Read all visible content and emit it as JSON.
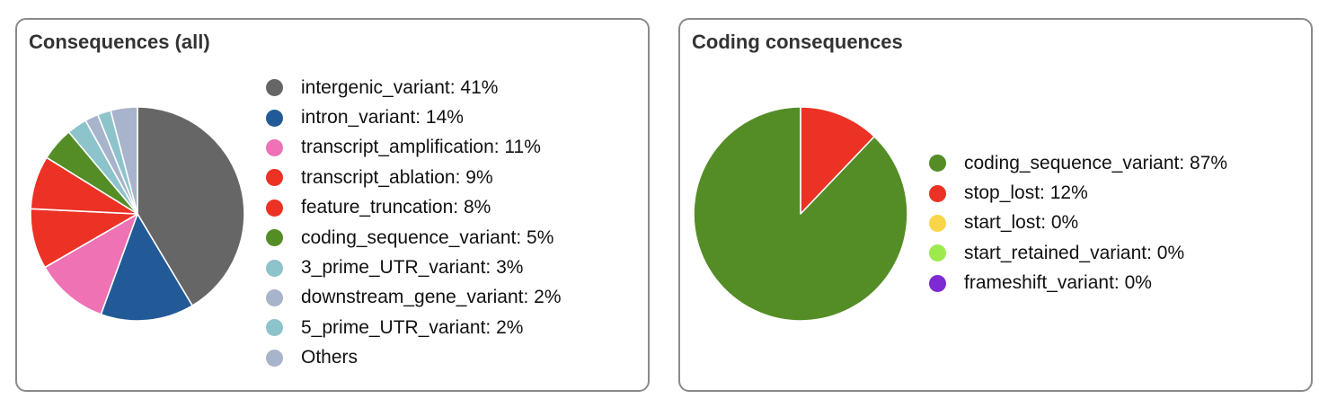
{
  "chart_data": [
    {
      "type": "pie",
      "title": "Consequences (all)",
      "slices": [
        {
          "label": "intergenic_variant",
          "value": 41,
          "color": "#666666"
        },
        {
          "label": "intron_variant",
          "value": 14,
          "color": "#225a97"
        },
        {
          "label": "transcript_amplification",
          "value": 11,
          "color": "#ee72b4"
        },
        {
          "label": "transcript_ablation",
          "value": 9,
          "color": "#ec3125"
        },
        {
          "label": "feature_truncation",
          "value": 8,
          "color": "#ec3125"
        },
        {
          "label": "coding_sequence_variant",
          "value": 5,
          "color": "#548d26"
        },
        {
          "label": "3_prime_UTR_variant",
          "value": 3,
          "color": "#8dc3cb"
        },
        {
          "label": "downstream_gene_variant",
          "value": 2,
          "color": "#a8b4cb"
        },
        {
          "label": "5_prime_UTR_variant",
          "value": 2,
          "color": "#8dc3cb"
        },
        {
          "label": "Others",
          "value": 4,
          "color": "#a8b4cb"
        }
      ],
      "legend": [
        {
          "text": "intergenic_variant: 41%",
          "color": "#666666"
        },
        {
          "text": "intron_variant: 14%",
          "color": "#225a97"
        },
        {
          "text": "transcript_amplification: 11%",
          "color": "#ee72b4"
        },
        {
          "text": "transcript_ablation: 9%",
          "color": "#ec3125"
        },
        {
          "text": "feature_truncation: 8%",
          "color": "#ec3125"
        },
        {
          "text": "coding_sequence_variant: 5%",
          "color": "#548d26"
        },
        {
          "text": "3_prime_UTR_variant: 3%",
          "color": "#8dc3cb"
        },
        {
          "text": "downstream_gene_variant: 2%",
          "color": "#a8b4cb"
        },
        {
          "text": "5_prime_UTR_variant: 2%",
          "color": "#8dc3cb"
        },
        {
          "text": "Others",
          "color": "#a8b4cb"
        }
      ],
      "legend_placement": "right"
    },
    {
      "type": "pie",
      "title": "Coding consequences",
      "slices": [
        {
          "label": "stop_lost",
          "value": 12,
          "color": "#ec3125"
        },
        {
          "label": "coding_sequence_variant",
          "value": 87,
          "color": "#548d26"
        }
      ],
      "legend": [
        {
          "text": "coding_sequence_variant: 87%",
          "color": "#548d26"
        },
        {
          "text": "stop_lost: 12%",
          "color": "#ec3125"
        },
        {
          "text": "start_lost: 0%",
          "color": "#f9d649"
        },
        {
          "text": "start_retained_variant: 0%",
          "color": "#9de94e"
        },
        {
          "text": "frameshift_variant: 0%",
          "color": "#7e2ad2"
        }
      ],
      "legend_placement": "right"
    }
  ]
}
